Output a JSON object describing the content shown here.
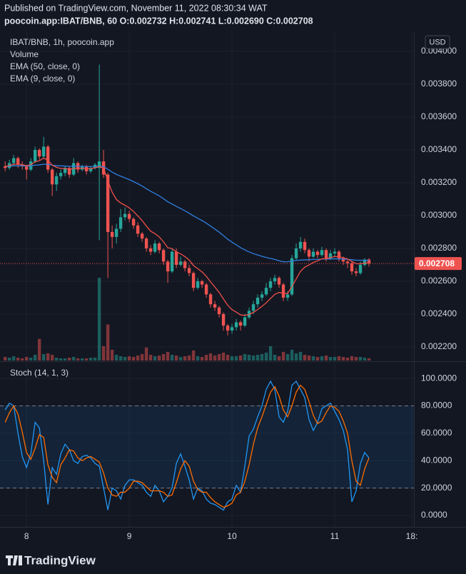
{
  "header": {
    "published": "Published on TradingView.com, November 11, 2022 08:30:34 WAT",
    "symbol_line": "poocoin.app:IBAT/BNB, 60 O:0.002732 H:0.002741 L:0.002690 C:0.002708",
    "currency": "USD",
    "logo": "TradingView"
  },
  "chart_data": [
    {
      "type": "candlestick",
      "title": "IBAT/BNB, 1h, poocoin.app",
      "up_color": "#26a69a",
      "down_color": "#ef5350",
      "xlim": [
        -1.2,
        95.5
      ],
      "xticks": [
        {
          "value": 5,
          "label": "8"
        },
        {
          "value": 29,
          "label": "9"
        },
        {
          "value": 53,
          "label": "10"
        },
        {
          "value": 77,
          "label": "11"
        },
        {
          "value": 95,
          "label": "18:"
        }
      ],
      "ylim": [
        0.002117,
        0.004122
      ],
      "yticks": [
        {
          "value": 0.0022,
          "label": "0.002200"
        },
        {
          "value": 0.0024,
          "label": "0.002400"
        },
        {
          "value": 0.0026,
          "label": "0.002600"
        },
        {
          "value": 0.0028,
          "label": "0.002800"
        },
        {
          "value": 0.003,
          "label": "0.003000"
        },
        {
          "value": 0.0032,
          "label": "0.003200"
        },
        {
          "value": 0.0034,
          "label": "0.003400"
        },
        {
          "value": 0.0036,
          "label": "0.003600"
        },
        {
          "value": 0.0038,
          "label": "0.003800"
        },
        {
          "value": 0.004,
          "label": "0.004000"
        }
      ],
      "grid": true,
      "last_price": {
        "value": 0.002708,
        "label": "0.002708"
      },
      "ohlc": [
        [
          0.0033,
          0.00333,
          0.00327,
          0.00329
        ],
        [
          0.00329,
          0.00334,
          0.00328,
          0.00332
        ],
        [
          0.00332,
          0.00337,
          0.0033,
          0.00335
        ],
        [
          0.00335,
          0.00336,
          0.00329,
          0.00331
        ],
        [
          0.00331,
          0.00333,
          0.00328,
          0.0033
        ],
        [
          0.0033,
          0.00331,
          0.00322,
          0.00328
        ],
        [
          0.00328,
          0.00335,
          0.00327,
          0.00333
        ],
        [
          0.00333,
          0.00342,
          0.00332,
          0.0034
        ],
        [
          0.0034,
          0.00341,
          0.00334,
          0.00336
        ],
        [
          0.00336,
          0.00348,
          0.00335,
          0.00342
        ],
        [
          0.00342,
          0.00343,
          0.00326,
          0.00328
        ],
        [
          0.00328,
          0.00329,
          0.00312,
          0.00319
        ],
        [
          0.00319,
          0.00326,
          0.00315,
          0.00324
        ],
        [
          0.00324,
          0.00328,
          0.00322,
          0.00326
        ],
        [
          0.00326,
          0.0033,
          0.00324,
          0.00329
        ],
        [
          0.00329,
          0.0033,
          0.00323,
          0.00325
        ],
        [
          0.00325,
          0.00335,
          0.00324,
          0.00332
        ],
        [
          0.00332,
          0.00333,
          0.00326,
          0.00328
        ],
        [
          0.00328,
          0.00331,
          0.00327,
          0.0033
        ],
        [
          0.0033,
          0.00331,
          0.00325,
          0.00327
        ],
        [
          0.00327,
          0.0033,
          0.00326,
          0.00329
        ],
        [
          0.00329,
          0.00332,
          0.00328,
          0.00331
        ],
        [
          0.00329,
          0.00392,
          0.00285,
          0.00333
        ],
        [
          0.00333,
          0.0034,
          0.00323,
          0.00325
        ],
        [
          0.00325,
          0.00326,
          0.00262,
          0.0029
        ],
        [
          0.0029,
          0.00294,
          0.0028,
          0.00287
        ],
        [
          0.00287,
          0.00295,
          0.00283,
          0.00292
        ],
        [
          0.00292,
          0.00304,
          0.0029,
          0.00299
        ],
        [
          0.00299,
          0.00305,
          0.00297,
          0.00301
        ],
        [
          0.00301,
          0.00303,
          0.00296,
          0.00298
        ],
        [
          0.00298,
          0.00299,
          0.00292,
          0.00294
        ],
        [
          0.00294,
          0.00296,
          0.00287,
          0.00289
        ],
        [
          0.00289,
          0.0029,
          0.00284,
          0.00286
        ],
        [
          0.00286,
          0.00287,
          0.00278,
          0.0028
        ],
        [
          0.0028,
          0.00282,
          0.00276,
          0.00278
        ],
        [
          0.00278,
          0.00285,
          0.00277,
          0.00283
        ],
        [
          0.00283,
          0.00284,
          0.00277,
          0.00279
        ],
        [
          0.00279,
          0.0028,
          0.0027,
          0.00272
        ],
        [
          0.00272,
          0.00273,
          0.00259,
          0.00266
        ],
        [
          0.00266,
          0.0028,
          0.00265,
          0.00278
        ],
        [
          0.00278,
          0.0028,
          0.00268,
          0.0027
        ],
        [
          0.0027,
          0.00275,
          0.00269,
          0.00272
        ],
        [
          0.00272,
          0.00273,
          0.00266,
          0.00268
        ],
        [
          0.00268,
          0.0027,
          0.00263,
          0.00265
        ],
        [
          0.00265,
          0.00266,
          0.00254,
          0.00256
        ],
        [
          0.00256,
          0.00262,
          0.00255,
          0.0026
        ],
        [
          0.0026,
          0.00261,
          0.00256,
          0.00258
        ],
        [
          0.00258,
          0.00259,
          0.0025,
          0.00252
        ],
        [
          0.00252,
          0.00253,
          0.00244,
          0.00246
        ],
        [
          0.00246,
          0.00248,
          0.00242,
          0.00244
        ],
        [
          0.00244,
          0.00245,
          0.00238,
          0.0024
        ],
        [
          0.0024,
          0.00241,
          0.0023,
          0.00233
        ],
        [
          0.00233,
          0.00234,
          0.00227,
          0.0023
        ],
        [
          0.0023,
          0.00234,
          0.00228,
          0.00232
        ],
        [
          0.00232,
          0.00237,
          0.0023,
          0.00235
        ],
        [
          0.00235,
          0.00236,
          0.0023,
          0.00233
        ],
        [
          0.00233,
          0.0024,
          0.00232,
          0.00238
        ],
        [
          0.00238,
          0.00244,
          0.00237,
          0.00242
        ],
        [
          0.00242,
          0.00248,
          0.0024,
          0.00246
        ],
        [
          0.00246,
          0.00252,
          0.00244,
          0.0025
        ],
        [
          0.0025,
          0.00254,
          0.00248,
          0.00252
        ],
        [
          0.00252,
          0.00259,
          0.00251,
          0.00256
        ],
        [
          0.00256,
          0.00262,
          0.00254,
          0.0026
        ],
        [
          0.0026,
          0.00264,
          0.00258,
          0.00262
        ],
        [
          0.00262,
          0.00263,
          0.00256,
          0.00258
        ],
        [
          0.00258,
          0.00259,
          0.00248,
          0.0025
        ],
        [
          0.0025,
          0.00254,
          0.00248,
          0.00252
        ],
        [
          0.00252,
          0.00276,
          0.00251,
          0.00274
        ],
        [
          0.00274,
          0.00283,
          0.00273,
          0.0028
        ],
        [
          0.0028,
          0.00287,
          0.00278,
          0.00284
        ],
        [
          0.00284,
          0.00286,
          0.00277,
          0.00279
        ],
        [
          0.00279,
          0.0028,
          0.00272,
          0.00275
        ],
        [
          0.00275,
          0.0028,
          0.00274,
          0.00278
        ],
        [
          0.00278,
          0.00279,
          0.00274,
          0.00276
        ],
        [
          0.00276,
          0.00281,
          0.00275,
          0.00279
        ],
        [
          0.00279,
          0.0028,
          0.00272,
          0.00274
        ],
        [
          0.00274,
          0.00279,
          0.00273,
          0.00277
        ],
        [
          0.00277,
          0.0028,
          0.00275,
          0.00278
        ],
        [
          0.00278,
          0.00279,
          0.00272,
          0.00274
        ],
        [
          0.00274,
          0.00275,
          0.0027,
          0.00272
        ],
        [
          0.00272,
          0.00273,
          0.00268,
          0.00271
        ],
        [
          0.00271,
          0.00272,
          0.00264,
          0.00266
        ],
        [
          0.00266,
          0.00268,
          0.00263,
          0.00265
        ],
        [
          0.00265,
          0.00272,
          0.00264,
          0.0027
        ],
        [
          0.0027,
          0.00274,
          0.00269,
          0.002732
        ],
        [
          0.002732,
          0.002741,
          0.00269,
          0.002708
        ]
      ],
      "volume": {
        "name": "Volume",
        "values": [
          5,
          4,
          6,
          4,
          3,
          5,
          4,
          8,
          30,
          9,
          10,
          8,
          4,
          3,
          3,
          4,
          5,
          3,
          3,
          3,
          4,
          4,
          115,
          20,
          50,
          15,
          8,
          6,
          5,
          6,
          5,
          7,
          9,
          18,
          8,
          6,
          7,
          9,
          12,
          8,
          7,
          5,
          6,
          7,
          14,
          6,
          5,
          8,
          10,
          7,
          9,
          11,
          8,
          6,
          6,
          7,
          9,
          8,
          7,
          8,
          9,
          11,
          20,
          8,
          6,
          12,
          9,
          15,
          10,
          12,
          8,
          7,
          6,
          5,
          6,
          7,
          5,
          5,
          6,
          5,
          4,
          6,
          5,
          5,
          4,
          3
        ]
      },
      "series": [
        {
          "name": "EMA (50, close, 0)",
          "color": "#2f7fe0",
          "values": [
            0.0033,
            0.003301,
            0.003303,
            0.003303,
            0.003303,
            0.003302,
            0.003303,
            0.003307,
            0.003309,
            0.003313,
            0.003312,
            0.003307,
            0.003304,
            0.003303,
            0.003302,
            0.0033,
            0.003301,
            0.0033,
            0.0033,
            0.003299,
            0.003299,
            0.003299,
            0.0033,
            0.003298,
            0.003282,
            0.003265,
            0.003251,
            0.00324,
            0.00323,
            0.003219,
            0.003207,
            0.003194,
            0.00318,
            0.003164,
            0.003148,
            0.003135,
            0.00312,
            0.003103,
            0.003084,
            0.003071,
            0.003056,
            0.003043,
            0.003029,
            0.003015,
            0.002998,
            0.002984,
            0.00297,
            0.002954,
            0.002936,
            0.002918,
            0.002899,
            0.002878,
            0.002856,
            0.002838,
            0.002822,
            0.002805,
            0.002791,
            0.002779,
            0.002768,
            0.00276,
            0.002752,
            0.002745,
            0.002739,
            0.002733,
            0.002725,
            0.002718,
            0.002719,
            0.002722,
            0.002727,
            0.002729,
            0.00273,
            0.002731,
            0.002733,
            0.002733,
            0.002735,
            0.002735,
            0.002736,
            0.002737,
            0.002736,
            0.002735,
            0.002734,
            0.002731,
            0.002728,
            0.002728,
            0.002728,
            0.002727
          ]
        },
        {
          "name": "EMA (9, close, 0)",
          "color": "#f0504a",
          "values": [
            0.0033,
            0.003304,
            0.003313,
            0.003313,
            0.00331,
            0.003304,
            0.00331,
            0.003328,
            0.003334,
            0.003351,
            0.003337,
            0.003307,
            0.003294,
            0.003287,
            0.003288,
            0.00328,
            0.003288,
            0.003286,
            0.003289,
            0.003285,
            0.003286,
            0.003291,
            0.003299,
            0.003289,
            0.003211,
            0.003143,
            0.003098,
            0.003077,
            0.003063,
            0.003047,
            0.003025,
            0.002998,
            0.00297,
            0.002936,
            0.002905,
            0.00289,
            0.00287,
            0.00284,
            0.002804,
            0.002799,
            0.002779,
            0.002767,
            0.00275,
            0.00273,
            0.002696,
            0.002677,
            0.002657,
            0.00263,
            0.002596,
            0.002565,
            0.002532,
            0.002492,
            0.002454,
            0.002427,
            0.002412,
            0.002395,
            0.002392,
            0.002398,
            0.00241,
            0.002428,
            0.002447,
            0.002469,
            0.002495,
            0.00252,
            0.002532,
            0.002526,
            0.002525,
            0.002568,
            0.002614,
            0.00266,
            0.002686,
            0.002699,
            0.002715,
            0.002724,
            0.002737,
            0.002738,
            0.002744,
            0.002751,
            0.002749,
            0.002743,
            0.002736,
            0.002721,
            0.002707,
            0.002706,
            0.002711,
            0.002711
          ]
        }
      ]
    },
    {
      "type": "line",
      "title": "Stoch (14, 1, 3)",
      "ylim": [
        -8.3,
        111.5
      ],
      "yticks": [
        {
          "value": 0,
          "label": "0.0000"
        },
        {
          "value": 20,
          "label": "20.0000"
        },
        {
          "value": 40,
          "label": "40.0000"
        },
        {
          "value": 60,
          "label": "60.0000"
        },
        {
          "value": 80,
          "label": "80.0000"
        },
        {
          "value": 100,
          "label": "100.0000"
        }
      ],
      "band": [
        20,
        80
      ],
      "band_color": "#2196f3",
      "series": [
        {
          "color": "#2196f3",
          "values": [
            77,
            82,
            80,
            60,
            43,
            35,
            45,
            68,
            64,
            40,
            8,
            35,
            30,
            45,
            52,
            48,
            40,
            38,
            43,
            44,
            42,
            38,
            36,
            20,
            4,
            20,
            18,
            12,
            22,
            26,
            26,
            24,
            22,
            17,
            14,
            22,
            18,
            10,
            14,
            20,
            38,
            45,
            36,
            26,
            12,
            20,
            18,
            12,
            9,
            8,
            6,
            4,
            10,
            12,
            22,
            17,
            36,
            58,
            63,
            72,
            80,
            92,
            98,
            92,
            72,
            68,
            76,
            95,
            98,
            92,
            86,
            70,
            62,
            68,
            78,
            80,
            82,
            76,
            70,
            62,
            48,
            10,
            18,
            38,
            46,
            42
          ]
        },
        {
          "color": "#ff6d00",
          "values": [
            68,
            75,
            80,
            74,
            61,
            46,
            41,
            49,
            59,
            57,
            37,
            28,
            24,
            37,
            42,
            48,
            47,
            42,
            40,
            42,
            43,
            41,
            39,
            31,
            20,
            15,
            14,
            17,
            17,
            20,
            25,
            25,
            24,
            21,
            18,
            18,
            18,
            17,
            14,
            15,
            24,
            34,
            40,
            36,
            25,
            19,
            17,
            17,
            13,
            10,
            8,
            6,
            7,
            9,
            15,
            17,
            25,
            37,
            52,
            64,
            72,
            81,
            90,
            94,
            87,
            77,
            72,
            80,
            90,
            95,
            92,
            83,
            73,
            67,
            69,
            75,
            80,
            79,
            76,
            69,
            60,
            40,
            25,
            22,
            34,
            42
          ]
        }
      ]
    }
  ]
}
